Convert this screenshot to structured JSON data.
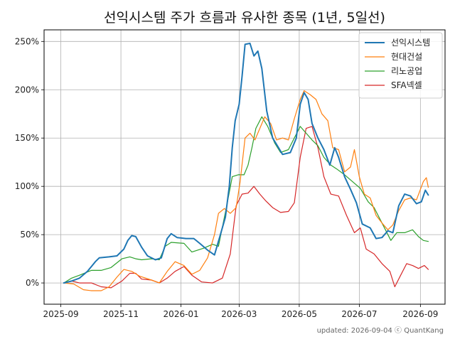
{
  "chart_data": {
    "type": "line",
    "title": "선익시스템 주가 흐름과 유사한 종목 (1년, 5일선)",
    "footer": "updated: 2026-09-04 ⓒ QuantKang",
    "grid": true,
    "legend_position": "top-right",
    "x_ticks": [
      "2025-09",
      "2025-11",
      "2026-01",
      "2026-03",
      "2026-05",
      "2026-07",
      "2026-09"
    ],
    "x_range": [
      "2025-08-15",
      "2026-09-26"
    ],
    "y_ticks": [
      0,
      50,
      100,
      150,
      200,
      250
    ],
    "y_tick_labels": [
      "0%",
      "50%",
      "100%",
      "150%",
      "200%",
      "250%"
    ],
    "y_range": [
      -22,
      262
    ],
    "series": [
      {
        "name": "선익시스템",
        "color": "#1f77b4",
        "points": [
          [
            "2025-09-04",
            0
          ],
          [
            "2025-09-12",
            2
          ],
          [
            "2025-09-20",
            5
          ],
          [
            "2025-09-28",
            12
          ],
          [
            "2025-10-06",
            22
          ],
          [
            "2025-10-10",
            26
          ],
          [
            "2025-10-20",
            27
          ],
          [
            "2025-10-28",
            28
          ],
          [
            "2025-11-04",
            35
          ],
          [
            "2025-11-08",
            44
          ],
          [
            "2025-11-12",
            49
          ],
          [
            "2025-11-16",
            48
          ],
          [
            "2025-11-22",
            37
          ],
          [
            "2025-11-28",
            28
          ],
          [
            "2025-12-06",
            24
          ],
          [
            "2025-12-12",
            26
          ],
          [
            "2025-12-18",
            46
          ],
          [
            "2025-12-22",
            51
          ],
          [
            "2025-12-28",
            47
          ],
          [
            "2026-01-06",
            46
          ],
          [
            "2026-01-14",
            46
          ],
          [
            "2026-01-20",
            41
          ],
          [
            "2026-01-28",
            34
          ],
          [
            "2026-02-04",
            29
          ],
          [
            "2026-02-10",
            50
          ],
          [
            "2026-02-15",
            68
          ],
          [
            "2026-02-19",
            100
          ],
          [
            "2026-02-22",
            140
          ],
          [
            "2026-02-25",
            168
          ],
          [
            "2026-03-01",
            185
          ],
          [
            "2026-03-04",
            214
          ],
          [
            "2026-03-07",
            247
          ],
          [
            "2026-03-12",
            248
          ],
          [
            "2026-03-16",
            235
          ],
          [
            "2026-03-20",
            240
          ],
          [
            "2026-03-24",
            222
          ],
          [
            "2026-03-29",
            178
          ],
          [
            "2026-04-04",
            150
          ],
          [
            "2026-04-10",
            140
          ],
          [
            "2026-04-14",
            133
          ],
          [
            "2026-04-22",
            135
          ],
          [
            "2026-04-28",
            150
          ],
          [
            "2026-05-02",
            185
          ],
          [
            "2026-05-06",
            197
          ],
          [
            "2026-05-10",
            190
          ],
          [
            "2026-05-14",
            165
          ],
          [
            "2026-05-20",
            150
          ],
          [
            "2026-05-26",
            138
          ],
          [
            "2026-06-01",
            122
          ],
          [
            "2026-06-06",
            140
          ],
          [
            "2026-06-10",
            130
          ],
          [
            "2026-06-16",
            110
          ],
          [
            "2026-06-22",
            97
          ],
          [
            "2026-06-28",
            83
          ],
          [
            "2026-07-04",
            61
          ],
          [
            "2026-07-12",
            57
          ],
          [
            "2026-07-18",
            46
          ],
          [
            "2026-07-24",
            47
          ],
          [
            "2026-07-30",
            54
          ],
          [
            "2026-08-04",
            52
          ],
          [
            "2026-08-10",
            80
          ],
          [
            "2026-08-16",
            92
          ],
          [
            "2026-08-22",
            90
          ],
          [
            "2026-08-28",
            82
          ],
          [
            "2026-09-02",
            84
          ],
          [
            "2026-09-06",
            96
          ],
          [
            "2026-09-09",
            91
          ]
        ]
      },
      {
        "name": "현대건설",
        "color": "#ff7f0e",
        "points": [
          [
            "2025-09-04",
            0
          ],
          [
            "2025-09-14",
            -1
          ],
          [
            "2025-09-24",
            -7
          ],
          [
            "2025-10-02",
            -8
          ],
          [
            "2025-10-12",
            -8
          ],
          [
            "2025-10-20",
            -4
          ],
          [
            "2025-10-28",
            6
          ],
          [
            "2025-11-04",
            14
          ],
          [
            "2025-11-12",
            12
          ],
          [
            "2025-11-20",
            7
          ],
          [
            "2025-12-02",
            3
          ],
          [
            "2025-12-10",
            0
          ],
          [
            "2025-12-18",
            12
          ],
          [
            "2025-12-26",
            22
          ],
          [
            "2026-01-04",
            18
          ],
          [
            "2026-01-12",
            9
          ],
          [
            "2026-01-20",
            13
          ],
          [
            "2026-01-28",
            26
          ],
          [
            "2026-02-04",
            50
          ],
          [
            "2026-02-08",
            72
          ],
          [
            "2026-02-14",
            77
          ],
          [
            "2026-02-20",
            72
          ],
          [
            "2026-02-26",
            78
          ],
          [
            "2026-03-02",
            105
          ],
          [
            "2026-03-07",
            150
          ],
          [
            "2026-03-12",
            155
          ],
          [
            "2026-03-17",
            148
          ],
          [
            "2026-03-22",
            160
          ],
          [
            "2026-03-27",
            172
          ],
          [
            "2026-04-02",
            165
          ],
          [
            "2026-04-08",
            148
          ],
          [
            "2026-04-14",
            150
          ],
          [
            "2026-04-20",
            148
          ],
          [
            "2026-04-26",
            170
          ],
          [
            "2026-05-02",
            190
          ],
          [
            "2026-05-06",
            199
          ],
          [
            "2026-05-12",
            195
          ],
          [
            "2026-05-18",
            190
          ],
          [
            "2026-05-24",
            175
          ],
          [
            "2026-05-30",
            168
          ],
          [
            "2026-06-04",
            140
          ],
          [
            "2026-06-10",
            138
          ],
          [
            "2026-06-16",
            115
          ],
          [
            "2026-06-22",
            120
          ],
          [
            "2026-06-26",
            138
          ],
          [
            "2026-07-01",
            110
          ],
          [
            "2026-07-06",
            92
          ],
          [
            "2026-07-12",
            88
          ],
          [
            "2026-07-18",
            70
          ],
          [
            "2026-07-24",
            62
          ],
          [
            "2026-07-30",
            55
          ],
          [
            "2026-08-04",
            60
          ],
          [
            "2026-08-10",
            75
          ],
          [
            "2026-08-16",
            86
          ],
          [
            "2026-08-22",
            88
          ],
          [
            "2026-08-28",
            86
          ],
          [
            "2026-09-04",
            105
          ],
          [
            "2026-09-07",
            109
          ],
          [
            "2026-09-09",
            99
          ]
        ]
      },
      {
        "name": "리노공업",
        "color": "#2ca02c",
        "points": [
          [
            "2025-09-04",
            0
          ],
          [
            "2025-09-12",
            5
          ],
          [
            "2025-09-20",
            8
          ],
          [
            "2025-10-02",
            13
          ],
          [
            "2025-10-12",
            13
          ],
          [
            "2025-10-22",
            16
          ],
          [
            "2025-11-02",
            25
          ],
          [
            "2025-11-10",
            27
          ],
          [
            "2025-11-16",
            25
          ],
          [
            "2025-11-22",
            24
          ],
          [
            "2025-12-02",
            25
          ],
          [
            "2025-12-10",
            24
          ],
          [
            "2025-12-16",
            38
          ],
          [
            "2025-12-22",
            42
          ],
          [
            "2026-01-04",
            41
          ],
          [
            "2026-01-12",
            32
          ],
          [
            "2026-01-24",
            36
          ],
          [
            "2026-02-02",
            40
          ],
          [
            "2026-02-08",
            38
          ],
          [
            "2026-02-16",
            78
          ],
          [
            "2026-02-22",
            110
          ],
          [
            "2026-02-28",
            112
          ],
          [
            "2026-03-06",
            112
          ],
          [
            "2026-03-10",
            122
          ],
          [
            "2026-03-14",
            140
          ],
          [
            "2026-03-18",
            160
          ],
          [
            "2026-03-24",
            172
          ],
          [
            "2026-03-30",
            162
          ],
          [
            "2026-04-06",
            145
          ],
          [
            "2026-04-12",
            135
          ],
          [
            "2026-04-20",
            138
          ],
          [
            "2026-04-26",
            150
          ],
          [
            "2026-05-02",
            162
          ],
          [
            "2026-05-08",
            155
          ],
          [
            "2026-05-14",
            148
          ],
          [
            "2026-05-20",
            142
          ],
          [
            "2026-05-26",
            130
          ],
          [
            "2026-06-02",
            122
          ],
          [
            "2026-06-08",
            118
          ],
          [
            "2026-06-16",
            112
          ],
          [
            "2026-06-24",
            105
          ],
          [
            "2026-07-02",
            98
          ],
          [
            "2026-07-10",
            84
          ],
          [
            "2026-07-16",
            78
          ],
          [
            "2026-07-24",
            62
          ],
          [
            "2026-08-02",
            44
          ],
          [
            "2026-08-08",
            52
          ],
          [
            "2026-08-16",
            52
          ],
          [
            "2026-08-24",
            55
          ],
          [
            "2026-08-30",
            48
          ],
          [
            "2026-09-04",
            44
          ],
          [
            "2026-09-09",
            43
          ]
        ]
      },
      {
        "name": "SFA넥셀",
        "color": "#d62728",
        "points": [
          [
            "2025-09-04",
            0
          ],
          [
            "2025-09-12",
            2
          ],
          [
            "2025-09-20",
            0
          ],
          [
            "2025-10-02",
            0
          ],
          [
            "2025-10-12",
            -4
          ],
          [
            "2025-10-22",
            -5
          ],
          [
            "2025-11-02",
            2
          ],
          [
            "2025-11-10",
            10
          ],
          [
            "2025-11-16",
            10
          ],
          [
            "2025-11-22",
            4
          ],
          [
            "2025-12-02",
            3
          ],
          [
            "2025-12-10",
            0
          ],
          [
            "2025-12-18",
            5
          ],
          [
            "2025-12-26",
            12
          ],
          [
            "2026-01-04",
            17
          ],
          [
            "2026-01-12",
            8
          ],
          [
            "2026-01-22",
            1
          ],
          [
            "2026-02-02",
            0
          ],
          [
            "2026-02-12",
            5
          ],
          [
            "2026-02-20",
            30
          ],
          [
            "2026-02-26",
            80
          ],
          [
            "2026-03-04",
            92
          ],
          [
            "2026-03-10",
            93
          ],
          [
            "2026-03-16",
            100
          ],
          [
            "2026-03-22",
            92
          ],
          [
            "2026-03-28",
            85
          ],
          [
            "2026-04-04",
            78
          ],
          [
            "2026-04-12",
            73
          ],
          [
            "2026-04-20",
            74
          ],
          [
            "2026-04-26",
            83
          ],
          [
            "2026-05-02",
            130
          ],
          [
            "2026-05-08",
            160
          ],
          [
            "2026-05-14",
            162
          ],
          [
            "2026-05-20",
            140
          ],
          [
            "2026-05-26",
            110
          ],
          [
            "2026-06-02",
            92
          ],
          [
            "2026-06-10",
            90
          ],
          [
            "2026-06-18",
            70
          ],
          [
            "2026-06-26",
            52
          ],
          [
            "2026-07-02",
            57
          ],
          [
            "2026-07-08",
            35
          ],
          [
            "2026-07-16",
            30
          ],
          [
            "2026-07-24",
            20
          ],
          [
            "2026-08-01",
            12
          ],
          [
            "2026-08-06",
            -4
          ],
          [
            "2026-08-12",
            8
          ],
          [
            "2026-08-18",
            20
          ],
          [
            "2026-08-24",
            18
          ],
          [
            "2026-08-30",
            15
          ],
          [
            "2026-09-05",
            18
          ],
          [
            "2026-09-09",
            14
          ]
        ]
      }
    ]
  }
}
